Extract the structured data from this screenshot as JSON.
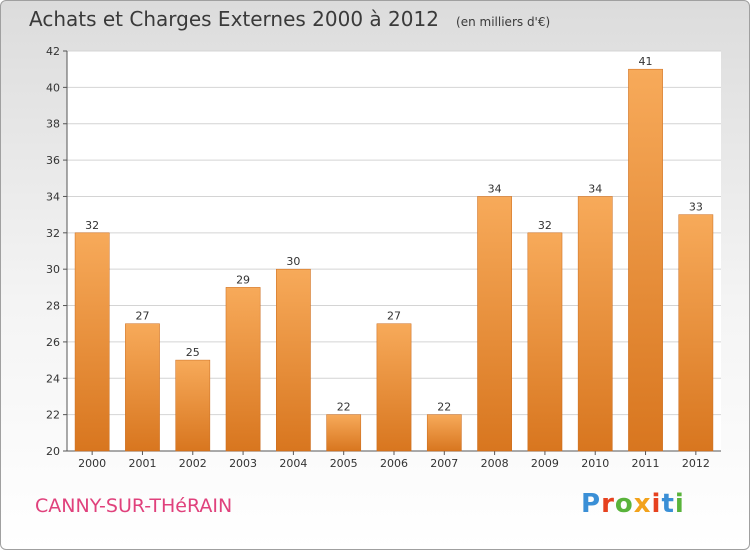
{
  "title": "Achats et Charges Externes 2000 à 2012",
  "unit": "(en milliers d'€)",
  "commune": "CANNY-SUR-THéRAIN",
  "brand": "Proxiti",
  "colors": {
    "bar_top": "#f7aa5a",
    "bar_bottom": "#d8761f",
    "grid": "#d4d4d4",
    "commune": "#e0417c"
  },
  "chart_data": {
    "type": "bar",
    "categories": [
      "2000",
      "2001",
      "2002",
      "2003",
      "2004",
      "2005",
      "2006",
      "2007",
      "2008",
      "2009",
      "2010",
      "2011",
      "2012"
    ],
    "values": [
      32,
      27,
      25,
      29,
      30,
      22,
      27,
      22,
      34,
      32,
      34,
      41,
      33
    ],
    "ylim": [
      20,
      42
    ],
    "yticks": [
      20,
      22,
      24,
      26,
      28,
      30,
      32,
      34,
      36,
      38,
      40,
      42
    ],
    "grid": true,
    "data_labels": true
  }
}
